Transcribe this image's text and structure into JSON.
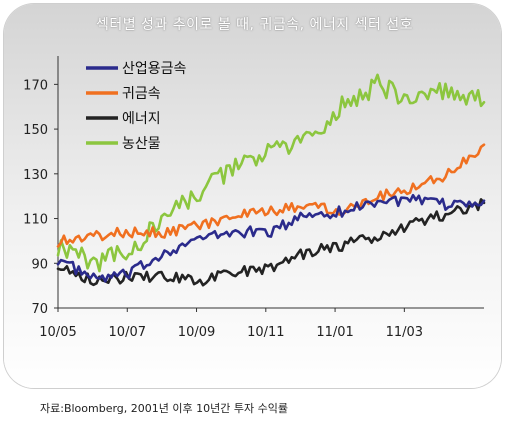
{
  "title": "섹터별 성과 추이로 볼 때, 귀금속, 에너지 섹터 선호",
  "source": "자료:Bloomberg, 2001년 이후 10년간 투자 수익률",
  "chart_data": {
    "type": "line",
    "title": "섹터별 성과 추이로 볼 때, 귀금속, 에너지 섹터 선호",
    "xlabel": "",
    "ylabel": "",
    "x_ticks": [
      "10/05",
      "10/07",
      "10/09",
      "10/11",
      "11/01",
      "11/03"
    ],
    "y_ticks": [
      70,
      90,
      110,
      130,
      150,
      170
    ],
    "ylim": [
      70,
      180
    ],
    "x": [
      "2010-05",
      "2010-06",
      "2010-07",
      "2010-08",
      "2010-09",
      "2010-10",
      "2010-11",
      "2010-12",
      "2011-01",
      "2011-02",
      "2011-03",
      "2011-04",
      "2011-05"
    ],
    "legend_position": "top-left",
    "grid": false,
    "series": [
      {
        "name": "산업용금속",
        "color": "#2b2b8c",
        "values": [
          92,
          83,
          85,
          95,
          101,
          104,
          104,
          112,
          113,
          118,
          118,
          116,
          118
        ]
      },
      {
        "name": "귀금속",
        "color": "#f07020",
        "values": [
          100,
          102,
          104,
          104,
          107,
          111,
          113,
          116,
          114,
          120,
          124,
          130,
          143
        ]
      },
      {
        "name": "에너지",
        "color": "#232323",
        "values": [
          90,
          82,
          84,
          84,
          82,
          86,
          88,
          95,
          98,
          102,
          108,
          112,
          117
        ]
      },
      {
        "name": "농산물",
        "color": "#8cc63f",
        "values": [
          98,
          90,
          95,
          110,
          122,
          133,
          140,
          145,
          160,
          170,
          162,
          168,
          162
        ]
      }
    ]
  }
}
